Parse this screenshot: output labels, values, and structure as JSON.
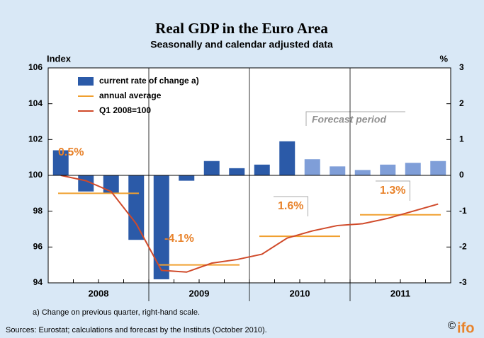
{
  "chart_data": {
    "type": "bar_line",
    "title": "Real GDP in the Euro Area",
    "subtitle": "Seasonally and calendar adjusted data",
    "y_label": "Index",
    "y2_label": "%",
    "year_labels": [
      "2008",
      "2009",
      "2010",
      "2011"
    ],
    "ylim": [
      94,
      106
    ],
    "yticks": [
      94,
      96,
      98,
      100,
      102,
      104,
      106
    ],
    "y2lim": [
      -3,
      3
    ],
    "y2ticks": [
      -3,
      -2,
      -1,
      0,
      1,
      2,
      3
    ],
    "series": [
      {
        "name": "current rate of change a)",
        "axis": "y2",
        "kind": "bar",
        "color": "#2b5aa8",
        "colors": [
          "#2b5aa8",
          "#2b5aa8",
          "#2b5aa8",
          "#2b5aa8",
          "#2b5aa8",
          "#2b5aa8",
          "#2b5aa8",
          "#2b5aa8",
          "#2b5aa8",
          "#2b5aa8",
          "#7f9ed8",
          "#7f9ed8",
          "#7f9ed8",
          "#7f9ed8",
          "#7f9ed8",
          "#7f9ed8"
        ],
        "values": [
          0.7,
          -0.45,
          -0.5,
          -1.8,
          -2.9,
          -0.15,
          0.4,
          0.2,
          0.3,
          0.95,
          0.45,
          0.25,
          0.15,
          0.3,
          0.35,
          0.4
        ]
      },
      {
        "name": "annual average",
        "kind": "annual",
        "color": "#f0a030",
        "values": [
          99.0,
          95.0,
          96.6,
          97.8
        ]
      },
      {
        "name": "Q1 2008=100",
        "kind": "line",
        "color": "#d04a2a",
        "values": [
          100,
          99.7,
          99.1,
          97.3,
          94.7,
          94.6,
          95.1,
          95.3,
          95.6,
          96.5,
          96.9,
          97.2,
          97.3,
          97.6,
          98.0,
          98.4
        ]
      }
    ],
    "annotations": [
      "0.5%",
      "-4.1%",
      "1.6%",
      "1.3%"
    ],
    "forecast_label": "Forecast period",
    "footnote": "a) Change on previous quarter, right-hand scale.",
    "source": "Sources: Eurostat; calculations and forecast by the Instituts (October 2010).",
    "logo": {
      "copyright": "©",
      "name": "ifo"
    }
  }
}
